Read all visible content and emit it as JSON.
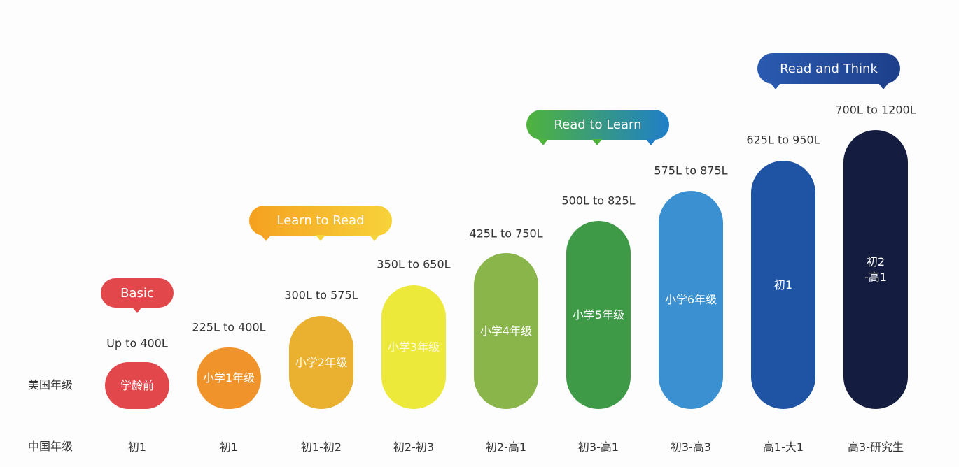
{
  "row_labels": {
    "us": "美国年级",
    "cn": "中国年级"
  },
  "stages": [
    {
      "label": "Basic",
      "colors": [
        "#e2474b",
        "#e2474b"
      ]
    },
    {
      "label": "Learn to Read",
      "colors": [
        "#f5a020",
        "#f7d33a"
      ]
    },
    {
      "label": "Read to Learn",
      "colors": [
        "#4fb33c",
        "#1f7fc8"
      ]
    },
    {
      "label": "Read and Think",
      "colors": [
        "#2a5ab0",
        "#1e3f8a"
      ]
    }
  ],
  "levels": [
    {
      "range": "Up to 400L",
      "us_grade": "学龄前",
      "cn_grade": "初1",
      "color": "#e2474b"
    },
    {
      "range": "225L to 400L",
      "us_grade": "小学1年级",
      "cn_grade": "初1",
      "color": "#f0932a"
    },
    {
      "range": "300L to 575L",
      "us_grade": "小学2年级",
      "cn_grade": "初1-初2",
      "color": "#eab030"
    },
    {
      "range": "350L to 650L",
      "us_grade": "小学3年级",
      "cn_grade": "初2-初3",
      "color": "#ece93a"
    },
    {
      "range": "425L to 750L",
      "us_grade": "小学4年级",
      "cn_grade": "初2-高1",
      "color": "#8ab54a"
    },
    {
      "range": "500L to 825L",
      "us_grade": "小学5年级",
      "cn_grade": "初3-高1",
      "color": "#3f9a48"
    },
    {
      "range": "575L to 875L",
      "us_grade": "小学6年级",
      "cn_grade": "初3-高3",
      "color": "#3a90d0"
    },
    {
      "range": "625L to 950L",
      "us_grade": "初1",
      "cn_grade": "高1-大1",
      "color": "#1f54a4"
    },
    {
      "range": "700L to 1200L",
      "us_grade": "初2\n-高1",
      "cn_grade": "高3-研究生",
      "color": "#141c3f"
    }
  ]
}
